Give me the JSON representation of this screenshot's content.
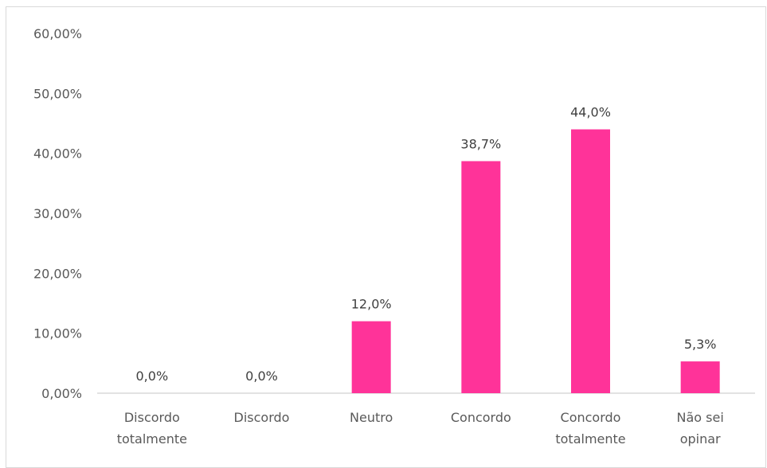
{
  "chart_data": {
    "type": "bar",
    "categories": [
      [
        "Discordo",
        "totalmente"
      ],
      [
        "Discordo"
      ],
      [
        "Neutro"
      ],
      [
        "Concordo"
      ],
      [
        "Concordo",
        "totalmente"
      ],
      [
        "Não sei",
        "opinar"
      ]
    ],
    "values": [
      0.0,
      0.0,
      12.0,
      38.7,
      44.0,
      5.3
    ],
    "data_labels": [
      "0,0%",
      "0,0%",
      "12,0%",
      "38,7%",
      "44,0%",
      "5,3%"
    ],
    "y_ticks": [
      0,
      10,
      20,
      30,
      40,
      50,
      60
    ],
    "y_tick_labels": [
      "0,00%",
      "10,00%",
      "20,00%",
      "30,00%",
      "40,00%",
      "50,00%",
      "60,00%"
    ],
    "ylim": [
      0,
      60
    ],
    "bar_color": "#ff3399",
    "axis_color": "#d9d9d9",
    "grid": false,
    "legend": "none"
  }
}
